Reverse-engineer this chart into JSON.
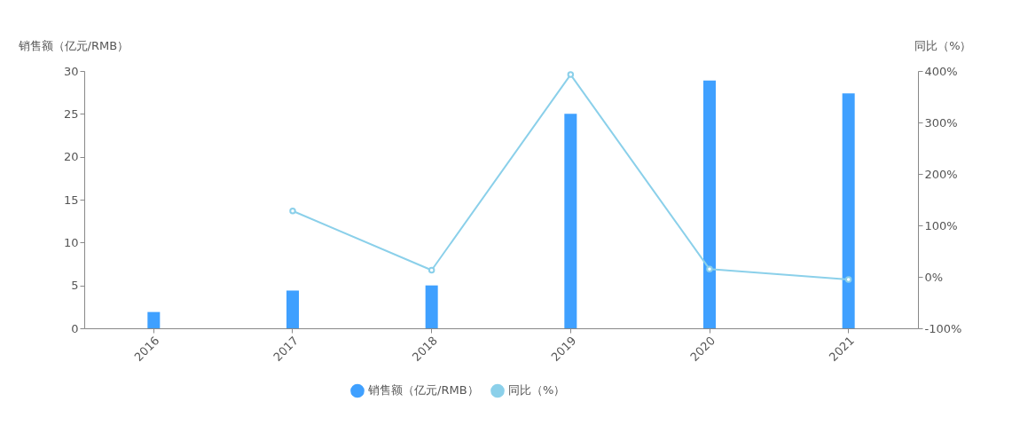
{
  "chart_data": {
    "type": "bar",
    "ylabel": "销售额（亿元/RMB）",
    "y2label": "同比（%）",
    "categories": [
      "2016",
      "2017",
      "2018",
      "2019",
      "2020",
      "2021"
    ],
    "series": [
      {
        "name": "销售额（亿元/RMB）",
        "color": "#3fa0ff",
        "values": [
          1.9,
          4.4,
          5.0,
          25.0,
          28.9,
          27.4
        ]
      },
      {
        "name": "同比（%）",
        "type": "line",
        "axis": "y2",
        "color": "#8bd0ea",
        "marker": "circle",
        "values": [
          null,
          128,
          13,
          393,
          15,
          -5
        ]
      }
    ],
    "ylim": [
      0,
      30
    ],
    "yticks": [
      0,
      5,
      10,
      15,
      20,
      25,
      30
    ],
    "y2lim": [
      -100,
      400
    ],
    "y2ticks": [
      {
        "value": -100,
        "label": "-100%"
      },
      {
        "value": 0,
        "label": "0%"
      },
      {
        "value": 100,
        "label": "100%"
      },
      {
        "value": 200,
        "label": "200%"
      },
      {
        "value": 300,
        "label": "300%"
      },
      {
        "value": 400,
        "label": "400%"
      }
    ],
    "grid": false,
    "legend": "bottom"
  }
}
